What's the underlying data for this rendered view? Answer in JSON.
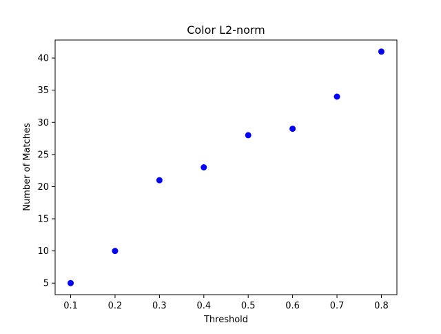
{
  "chart_data": {
    "type": "scatter",
    "title": "Color L2-norm",
    "xlabel": "Threshold",
    "ylabel": "Number of Matches",
    "x": [
      0.1,
      0.2,
      0.3,
      0.4,
      0.5,
      0.6,
      0.7,
      0.8
    ],
    "y": [
      5,
      10,
      21,
      23,
      28,
      29,
      34,
      41
    ],
    "xlim": [
      0.065,
      0.835
    ],
    "ylim": [
      3.2,
      42.8
    ],
    "xticks": [
      0.1,
      0.2,
      0.3,
      0.4,
      0.5,
      0.6,
      0.7,
      0.8
    ],
    "xtick_labels": [
      "0.1",
      "0.2",
      "0.3",
      "0.4",
      "0.5",
      "0.6",
      "0.7",
      "0.8"
    ],
    "yticks": [
      5,
      10,
      15,
      20,
      25,
      30,
      35,
      40
    ],
    "ytick_labels": [
      "5",
      "10",
      "15",
      "20",
      "25",
      "30",
      "35",
      "40"
    ],
    "grid": false,
    "marker_color": "#0000ff",
    "marker": "circle"
  }
}
